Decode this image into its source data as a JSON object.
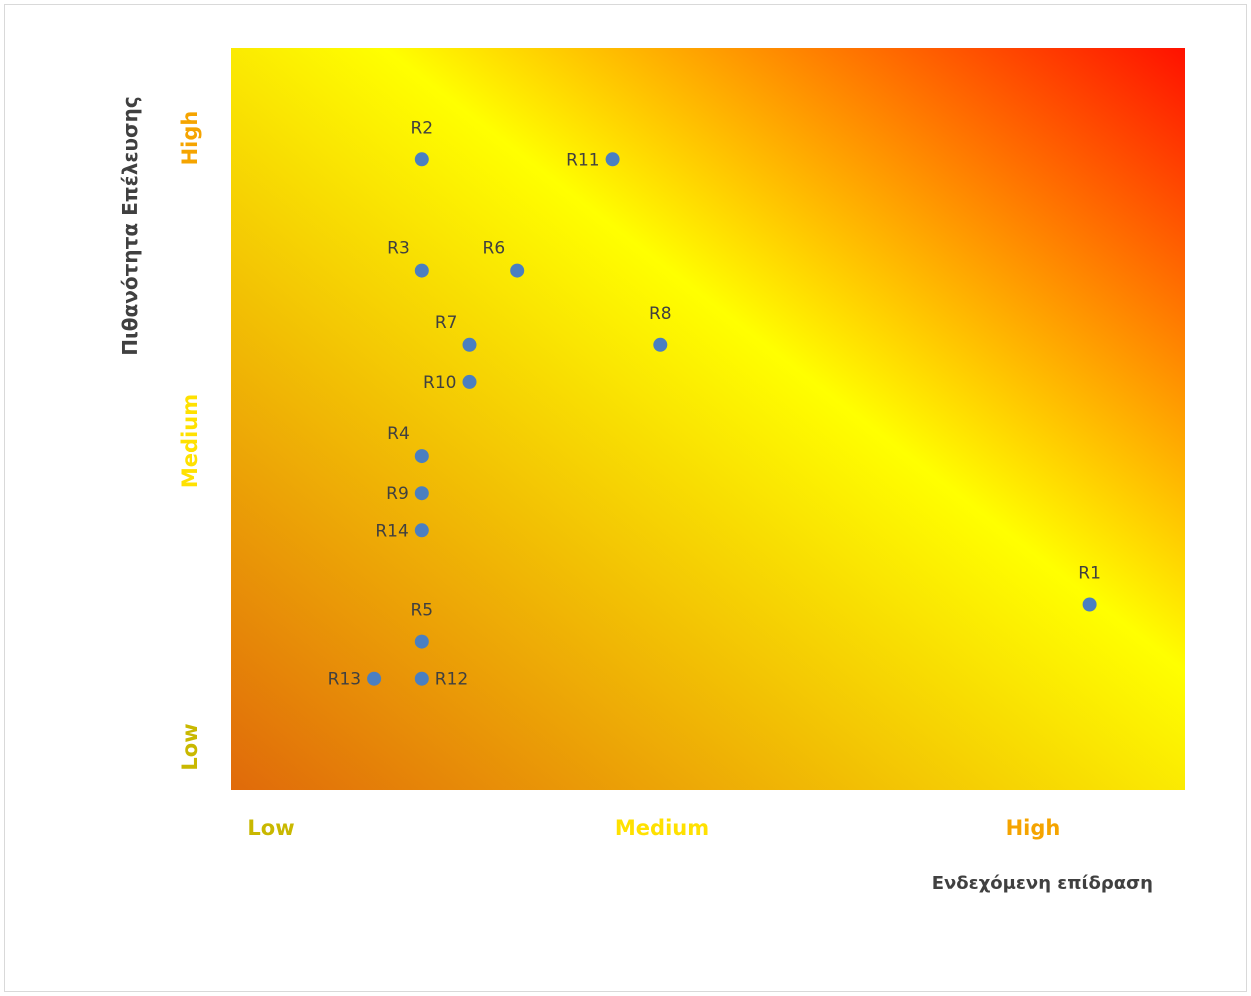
{
  "chart_data": {
    "type": "scatter",
    "xlabel": "Ενδεχόμενη επίδραση",
    "ylabel": "Πιθανότητα Επέλευσης",
    "x_categories": [
      "Low",
      "Medium",
      "High"
    ],
    "y_categories": [
      "Low",
      "Medium",
      "High"
    ],
    "xlim": [
      0,
      10
    ],
    "ylim": [
      0,
      10
    ],
    "grid": false,
    "point_color": "#4a7fc1",
    "category_colors": {
      "Low": "#c9b800",
      "Medium": "#ffe100",
      "High": "#f5a400"
    },
    "background_gradient": [
      "#e06a0a",
      "#ffff00",
      "#ff1100"
    ],
    "points": [
      {
        "name": "R1",
        "x": 9.0,
        "y": 2.5,
        "label_pos": "above"
      },
      {
        "name": "R2",
        "x": 2.0,
        "y": 8.5,
        "label_pos": "above"
      },
      {
        "name": "R3",
        "x": 2.0,
        "y": 7.0,
        "label_pos": "above-left"
      },
      {
        "name": "R4",
        "x": 2.0,
        "y": 4.5,
        "label_pos": "above-left"
      },
      {
        "name": "R5",
        "x": 2.0,
        "y": 2.0,
        "label_pos": "above"
      },
      {
        "name": "R6",
        "x": 3.0,
        "y": 7.0,
        "label_pos": "above-left"
      },
      {
        "name": "R7",
        "x": 2.5,
        "y": 6.0,
        "label_pos": "above-left"
      },
      {
        "name": "R8",
        "x": 4.5,
        "y": 6.0,
        "label_pos": "above"
      },
      {
        "name": "R9",
        "x": 2.0,
        "y": 4.0,
        "label_pos": "left"
      },
      {
        "name": "R10",
        "x": 2.5,
        "y": 5.5,
        "label_pos": "left"
      },
      {
        "name": "R11",
        "x": 4.0,
        "y": 8.5,
        "label_pos": "left"
      },
      {
        "name": "R12",
        "x": 2.0,
        "y": 1.5,
        "label_pos": "right"
      },
      {
        "name": "R13",
        "x": 1.5,
        "y": 1.5,
        "label_pos": "left"
      },
      {
        "name": "R14",
        "x": 2.0,
        "y": 3.5,
        "label_pos": "left"
      }
    ]
  }
}
